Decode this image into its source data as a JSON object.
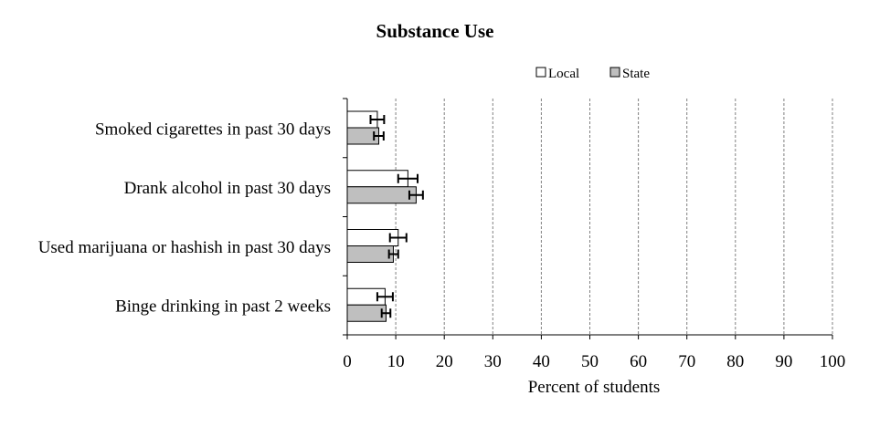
{
  "chart_data": {
    "type": "bar",
    "orientation": "horizontal",
    "title": "Substance Use",
    "xlabel": "Percent of students",
    "ylabel": "",
    "xlim": [
      0,
      100
    ],
    "xticks": [
      0,
      10,
      20,
      30,
      40,
      50,
      60,
      70,
      80,
      90,
      100
    ],
    "grid": "vertical dashed",
    "legend_position": "top-right",
    "categories": [
      "Smoked cigarettes in past 30 days",
      "Drank alcohol in past 30 days",
      "Used marijuana or hashish in past 30 days",
      "Binge drinking in past 2 weeks"
    ],
    "series": [
      {
        "name": "Local",
        "color": "#ffffff",
        "values": [
          6.2,
          12.5,
          10.5,
          7.8
        ],
        "error_low": [
          4.8,
          10.5,
          8.8,
          6.2
        ],
        "error_high": [
          7.6,
          14.5,
          12.2,
          9.4
        ]
      },
      {
        "name": "State",
        "color": "#bfbfbf",
        "values": [
          6.5,
          14.2,
          9.5,
          8.0
        ],
        "error_low": [
          5.5,
          12.8,
          8.6,
          7.1
        ],
        "error_high": [
          7.5,
          15.6,
          10.5,
          8.9
        ]
      }
    ]
  }
}
